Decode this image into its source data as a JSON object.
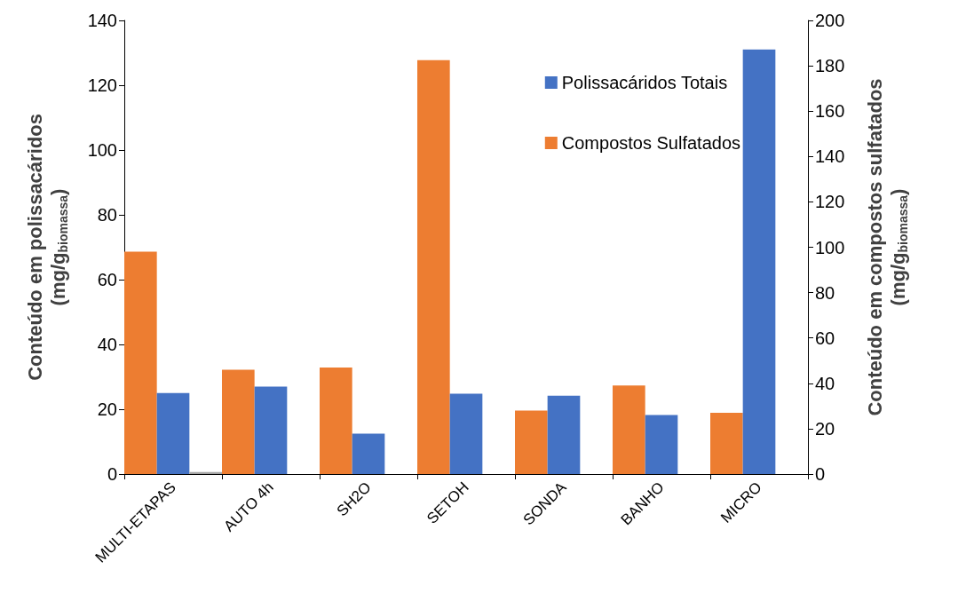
{
  "chart_data": {
    "type": "bar",
    "ylabel": "Conteúdo em polissacáridos\n(mg/g$_{biomassa}$)",
    "y2label": "Conteúdo em compostos sulfatados\n(mg/g$_{biomassa}$)",
    "categories": [
      "MULTI-ETAPAS",
      "AUTO 4h",
      "SH2O",
      "SETOH",
      "SONDA",
      "BANHO",
      "MICRO"
    ],
    "series": [
      {
        "name": "Compostos Sulfatados",
        "color": "#ed7d31",
        "axis": "y2",
        "values": [
          98,
          46,
          47,
          182.5,
          28,
          39,
          27
        ]
      },
      {
        "name": "Polissacáridos Totais",
        "color": "#4472c4",
        "values": [
          25,
          27,
          12.5,
          24.8,
          24.2,
          18.2,
          131
        ]
      },
      {
        "color": "#a5a5a5",
        "values": [
          0.6,
          null,
          null,
          null,
          null,
          null,
          null
        ]
      }
    ],
    "ylim": [
      0,
      140
    ],
    "yticks": [
      0,
      20,
      40,
      60,
      80,
      100,
      120,
      140
    ],
    "y2lim": [
      0,
      200
    ],
    "y2ticks": [
      0,
      20,
      40,
      60,
      80,
      100,
      120,
      140,
      160,
      180,
      200
    ],
    "grid": false,
    "legend": "top right"
  }
}
